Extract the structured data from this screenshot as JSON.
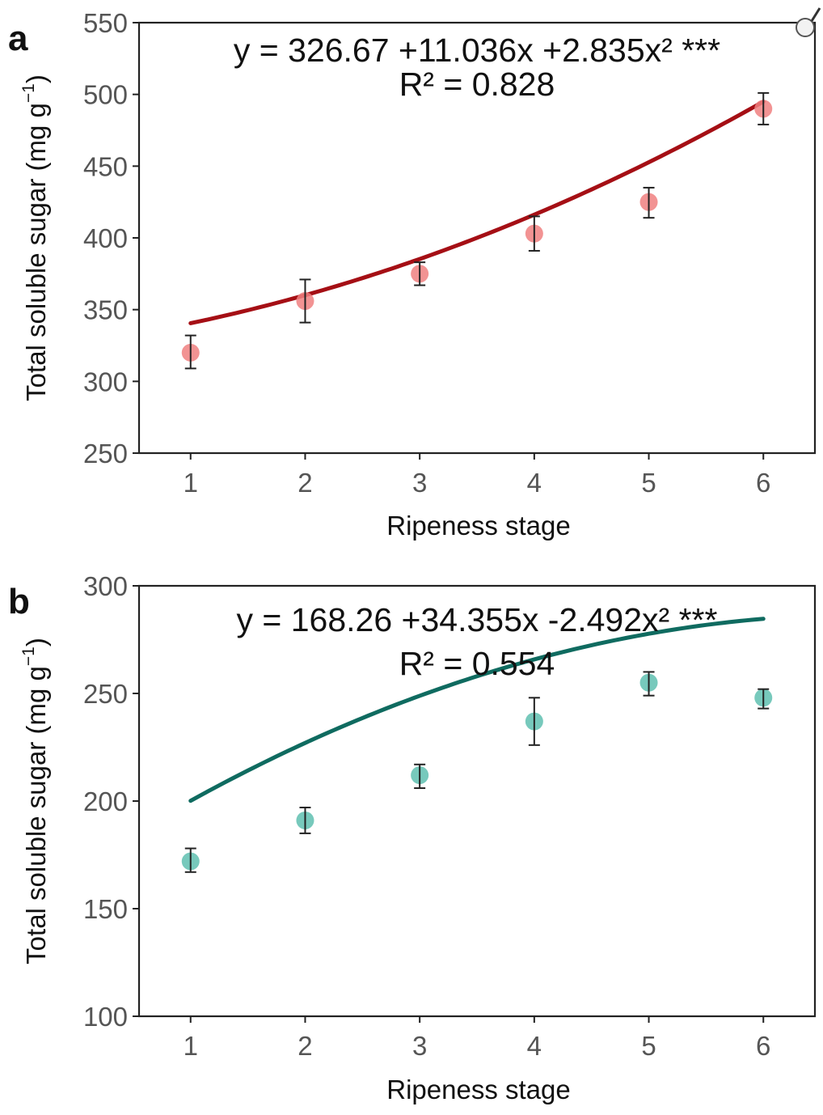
{
  "chart_data": [
    {
      "type": "scatter",
      "panel_label": "a",
      "equation": "y = 326.67 +11.036x +2.835x² ***",
      "r_squared": "R² = 0.828",
      "xlabel": "Ripeness stage",
      "ylabel": "Total soluble sugar (mg g",
      "ylabel_exp": "−1",
      "ylabel_close": ")",
      "x": [
        1,
        2,
        3,
        4,
        5,
        6
      ],
      "y": [
        320,
        356,
        375,
        403,
        425,
        490
      ],
      "err_low": [
        309,
        341,
        367,
        391,
        414,
        479
      ],
      "err_high": [
        332,
        371,
        383,
        415,
        435,
        501
      ],
      "fit": {
        "a": 326.67,
        "b": 11.036,
        "c": 2.835
      },
      "xticks": [
        "1",
        "2",
        "3",
        "4",
        "5",
        "6"
      ],
      "yticks": [
        "250",
        "300",
        "350",
        "400",
        "450",
        "500",
        "550"
      ],
      "ylim": [
        250,
        550
      ],
      "xlim": [
        0.55,
        6.45
      ],
      "point_color": "#f08080",
      "line_color": "#a50f15",
      "grid": false
    },
    {
      "type": "scatter",
      "panel_label": "b",
      "equation": "y = 168.26 +34.355x -2.492x² ***",
      "r_squared": "R² = 0.554",
      "xlabel": "Ripeness stage",
      "ylabel": "Total soluble sugar (mg g",
      "ylabel_exp": "−1",
      "ylabel_close": ")",
      "x": [
        1,
        2,
        3,
        4,
        5,
        6
      ],
      "y": [
        172,
        191,
        212,
        237,
        255,
        248
      ],
      "err_low": [
        167,
        185,
        206,
        226,
        249,
        243
      ],
      "err_high": [
        178,
        197,
        217,
        248,
        260,
        252
      ],
      "fit": {
        "a": 168.26,
        "b": 34.355,
        "c": -2.492
      },
      "xticks": [
        "1",
        "2",
        "3",
        "4",
        "5",
        "6"
      ],
      "yticks": [
        "100",
        "150",
        "200",
        "250",
        "300"
      ],
      "ylim": [
        100,
        300
      ],
      "xlim": [
        0.55,
        6.45
      ],
      "point_color": "#5fbfb0",
      "line_color": "#0f6b60",
      "grid": false
    }
  ]
}
